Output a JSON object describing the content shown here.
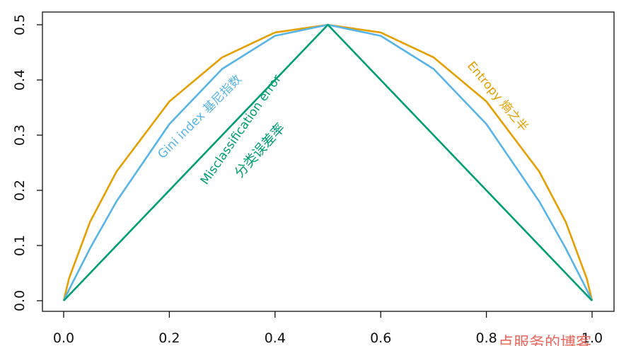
{
  "chart_data": {
    "type": "line",
    "title": "",
    "xlabel": "",
    "ylabel": "",
    "xlim": [
      0,
      1
    ],
    "ylim": [
      0,
      0.5
    ],
    "x_ticks": [
      "0.0",
      "0.2",
      "0.4",
      "0.6",
      "0.8",
      "1.0"
    ],
    "y_ticks": [
      "0.0",
      "0.1",
      "0.2",
      "0.3",
      "0.4",
      "0.5"
    ],
    "grid": false,
    "legend": "none",
    "series": [
      {
        "key": "entropy",
        "color": "#e69f00",
        "x": [
          0.0,
          0.01,
          0.05,
          0.1,
          0.2,
          0.3,
          0.4,
          0.5,
          0.6,
          0.7,
          0.8,
          0.9,
          0.95,
          0.99,
          1.0
        ],
        "values": [
          0.0,
          0.04,
          0.143,
          0.234,
          0.361,
          0.441,
          0.486,
          0.5,
          0.486,
          0.441,
          0.361,
          0.234,
          0.143,
          0.04,
          0.0
        ]
      },
      {
        "key": "gini",
        "color": "#56b4e9",
        "x": [
          0.0,
          0.01,
          0.05,
          0.1,
          0.2,
          0.3,
          0.4,
          0.5,
          0.6,
          0.7,
          0.8,
          0.9,
          0.95,
          0.99,
          1.0
        ],
        "values": [
          0.0,
          0.0198,
          0.095,
          0.18,
          0.32,
          0.42,
          0.48,
          0.5,
          0.48,
          0.42,
          0.32,
          0.18,
          0.095,
          0.0198,
          0.0
        ]
      },
      {
        "key": "misclassification",
        "color": "#009e73",
        "x": [
          0.0,
          0.5,
          1.0
        ],
        "values": [
          0.0,
          0.5,
          0.0
        ]
      }
    ],
    "annotations": {
      "gini": "Gini index 基尼指数",
      "misclass_en": "Misclassification error",
      "misclass_cn": "分类误差率",
      "entropy": "Entropy 熵之半"
    }
  },
  "watermark": "点服务的博客"
}
